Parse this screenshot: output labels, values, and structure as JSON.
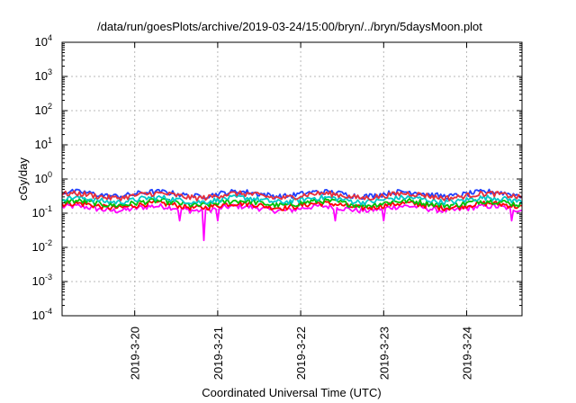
{
  "chart_data": {
    "type": "line",
    "title": "/data/run/goesPlots/archive/2019-03-24/15:00/bryn/../bryn/5daysMoon.plot",
    "xlabel": "Coordinated Universal Time (UTC)",
    "ylabel": "cGy/day",
    "yscale": "log",
    "ylim": [
      0.0001,
      10000
    ],
    "y_ticks": [
      {
        "base": "10",
        "exp": "-4",
        "value": 0.0001
      },
      {
        "base": "10",
        "exp": "-3",
        "value": 0.001
      },
      {
        "base": "10",
        "exp": "-2",
        "value": 0.01
      },
      {
        "base": "10",
        "exp": "-1",
        "value": 0.1
      },
      {
        "base": "10",
        "exp": "0",
        "value": 1
      },
      {
        "base": "10",
        "exp": "1",
        "value": 10
      },
      {
        "base": "10",
        "exp": "2",
        "value": 100
      },
      {
        "base": "10",
        "exp": "3",
        "value": 1000
      },
      {
        "base": "10",
        "exp": "4",
        "value": 10000
      }
    ],
    "xlim": [
      "2019-03-19T03:00",
      "2019-03-24T16:00"
    ],
    "x_ticks": [
      {
        "label": "2019-3-20",
        "value": "2019-03-20T00:00"
      },
      {
        "label": "2019-3-21",
        "value": "2019-03-21T00:00"
      },
      {
        "label": "2019-3-22",
        "value": "2019-03-22T00:00"
      },
      {
        "label": "2019-3-23",
        "value": "2019-03-23T00:00"
      },
      {
        "label": "2019-3-24",
        "value": "2019-03-24T00:00"
      }
    ],
    "grid": true,
    "series": [
      {
        "color": "#ff00ff",
        "level": 0.14,
        "dips": [
          {
            "t": "2019-03-20T13:00",
            "v": 0.06
          },
          {
            "t": "2019-03-20T20:00",
            "v": 0.016
          },
          {
            "t": "2019-03-21T00:00",
            "v": 0.06
          },
          {
            "t": "2019-03-22T10:00",
            "v": 0.06
          },
          {
            "t": "2019-03-23T00:00",
            "v": 0.06
          },
          {
            "t": "2019-03-24T13:00",
            "v": 0.06
          }
        ]
      },
      {
        "color": "#ff0000",
        "level": 0.17,
        "dips": []
      },
      {
        "color": "#00c000",
        "level": 0.2,
        "dips": []
      },
      {
        "color": "#00c8c8",
        "level": 0.25,
        "dips": []
      },
      {
        "color": "#2040ff",
        "level": 0.37,
        "dips": []
      },
      {
        "color": "#e8303a",
        "level": 0.33,
        "dips": []
      }
    ]
  }
}
